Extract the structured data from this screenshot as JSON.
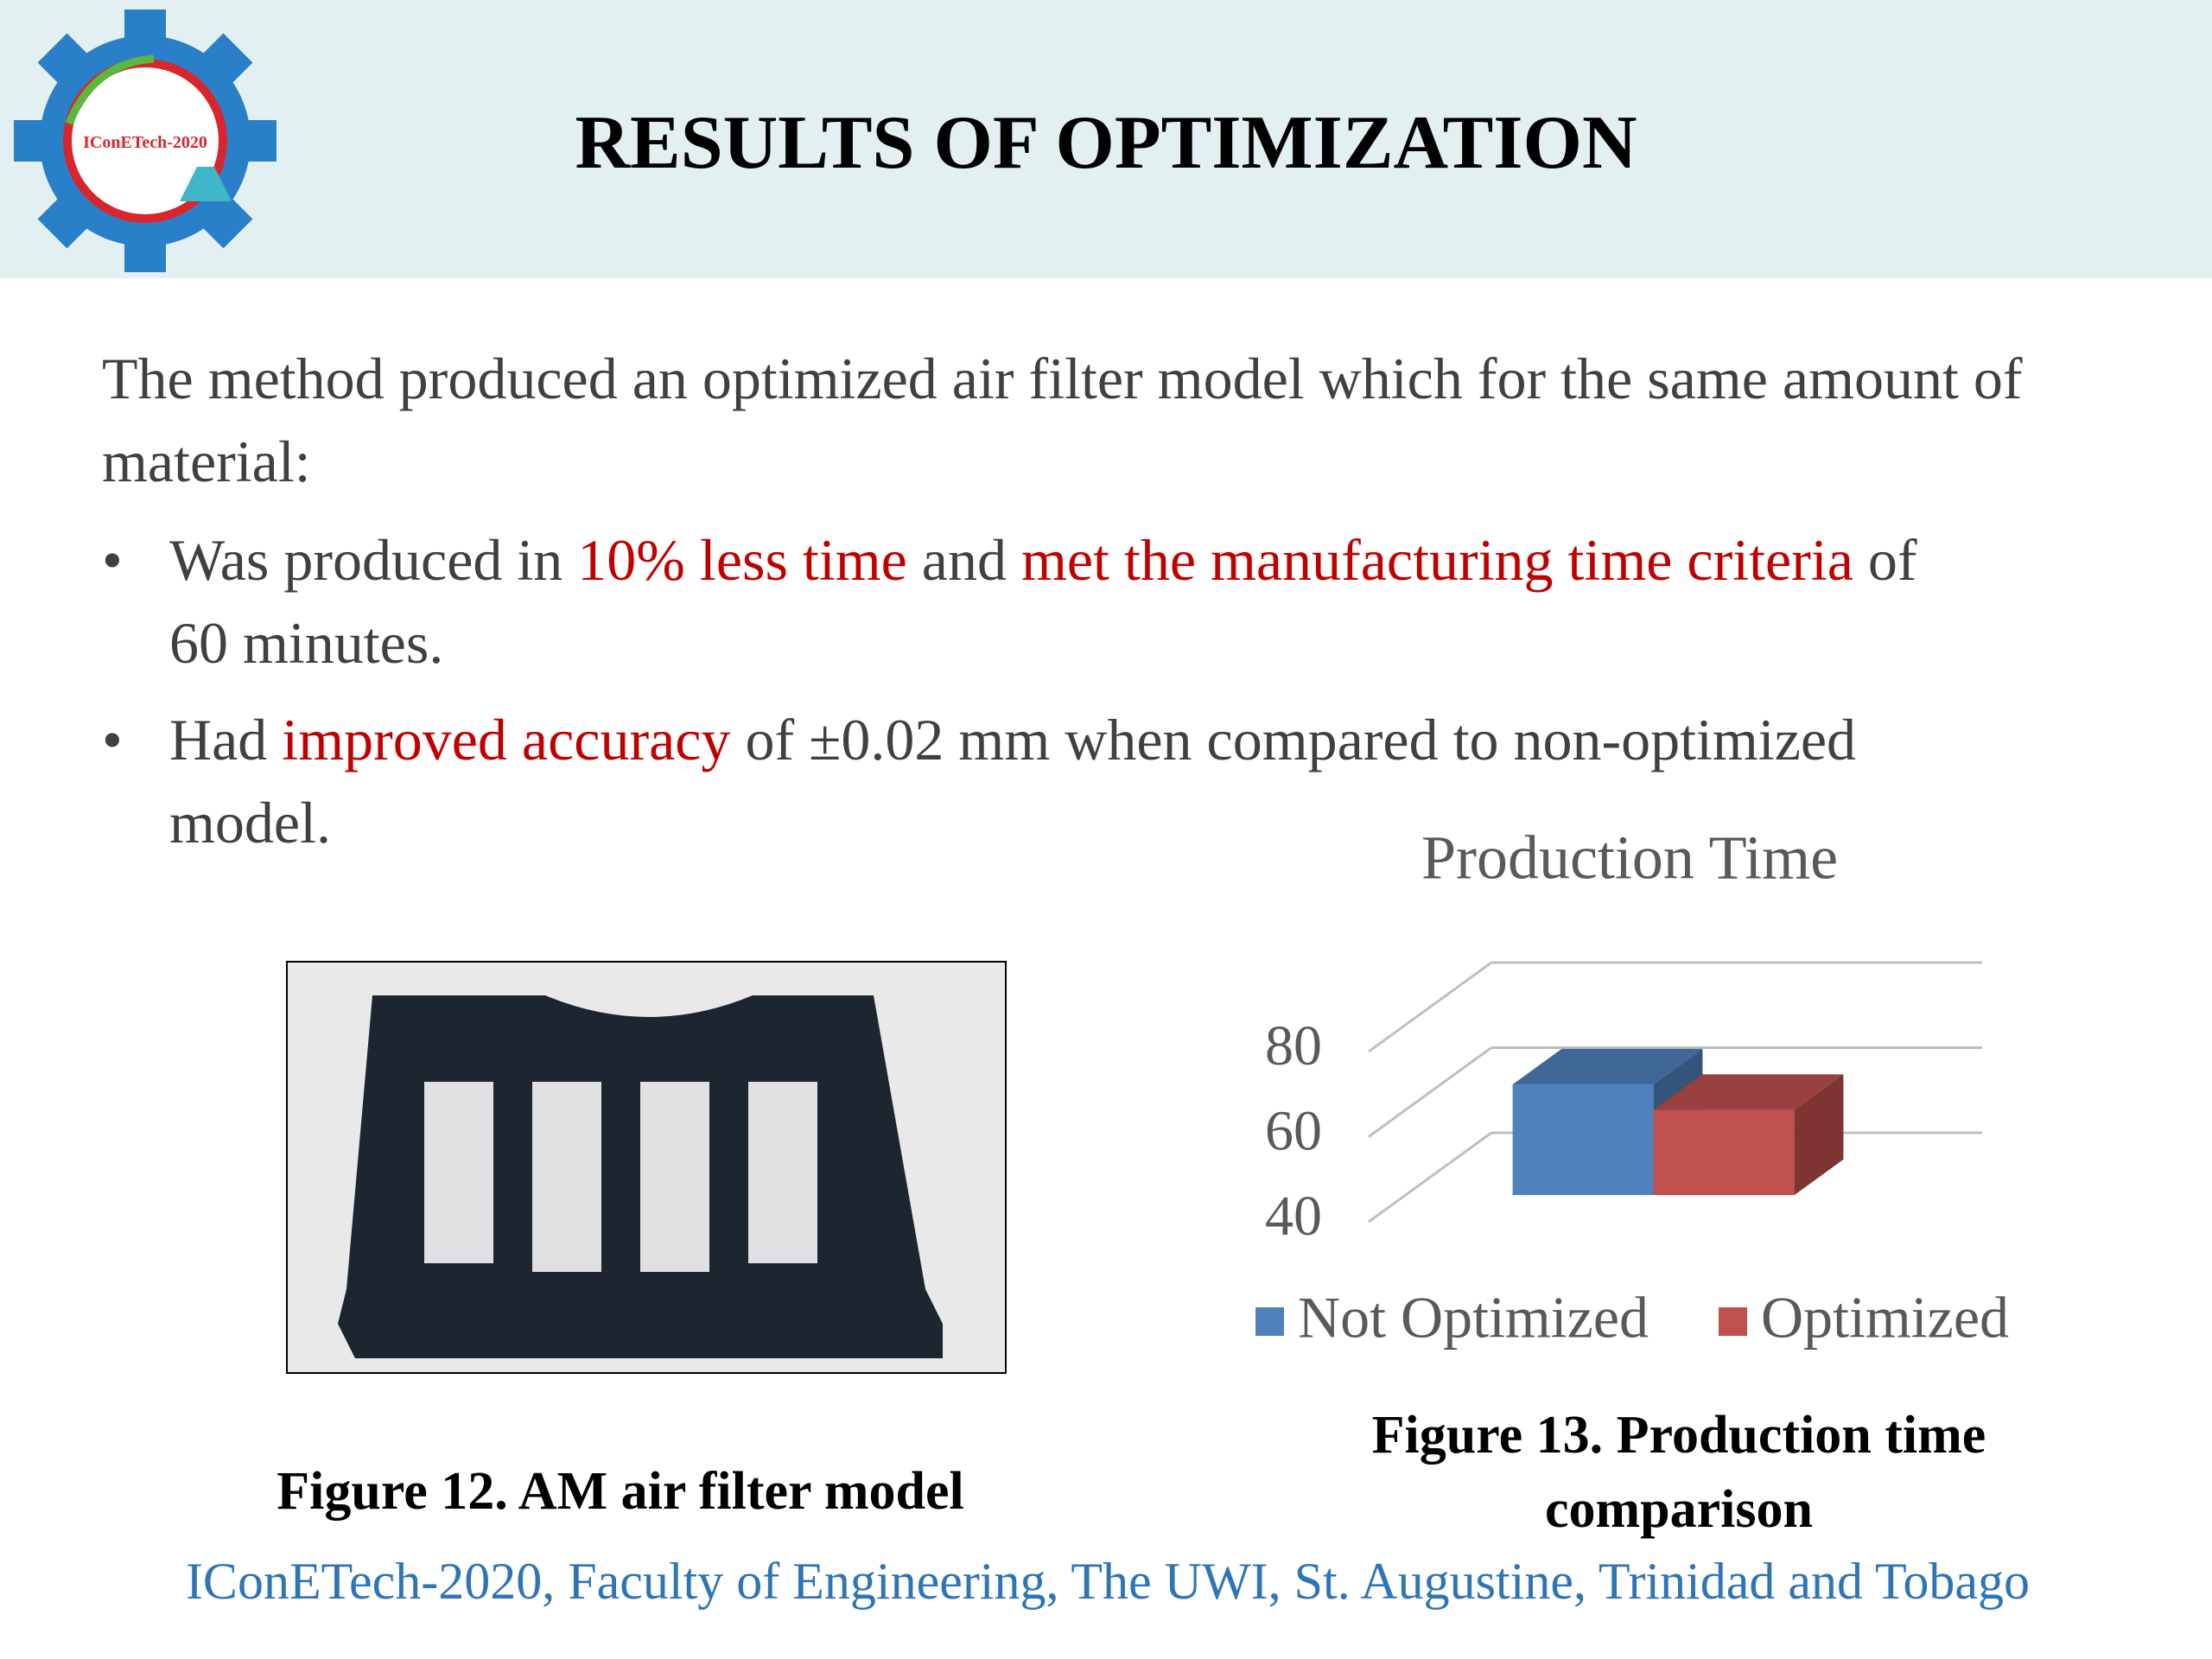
{
  "header": {
    "title": "RESULTS OF OPTIMIZATION",
    "logo_text": "IConETech-2020"
  },
  "body": {
    "intro": "The method produced an optimized air filter model which for the same amount of material:",
    "highlight_color": "#c00000",
    "bullets": [
      {
        "parts": [
          "Was produced in ",
          "10% less time",
          " and ",
          "met the manufacturing time criteria",
          " of 60 minutes."
        ],
        "highlight": [
          1,
          3
        ]
      },
      {
        "parts": [
          "Had ",
          "improved accuracy",
          " of ±0.02 mm when compared to non-optimized model."
        ],
        "highlight": [
          1
        ]
      }
    ]
  },
  "figures": [
    {
      "caption": "Figure 12. AM air filter model"
    },
    {
      "caption": [
        "Figure 13. Production time",
        "comparison"
      ]
    }
  ],
  "chart_data": {
    "type": "bar3d",
    "title": "Production Time",
    "categories": [
      null
    ],
    "series": [
      {
        "name": "Not Optimized",
        "color": "#4f81bd",
        "values": [
          66
        ]
      },
      {
        "name": "Optimized",
        "color": "#c0504d",
        "values": [
          60
        ]
      }
    ],
    "ylim": [
      40,
      80
    ],
    "yticks": [
      40,
      60,
      80
    ],
    "grid": true,
    "legend": "bottom"
  },
  "footer": "IConETech-2020, Faculty of Engineering, The UWI, St. Augustine, Trinidad and Tobago"
}
